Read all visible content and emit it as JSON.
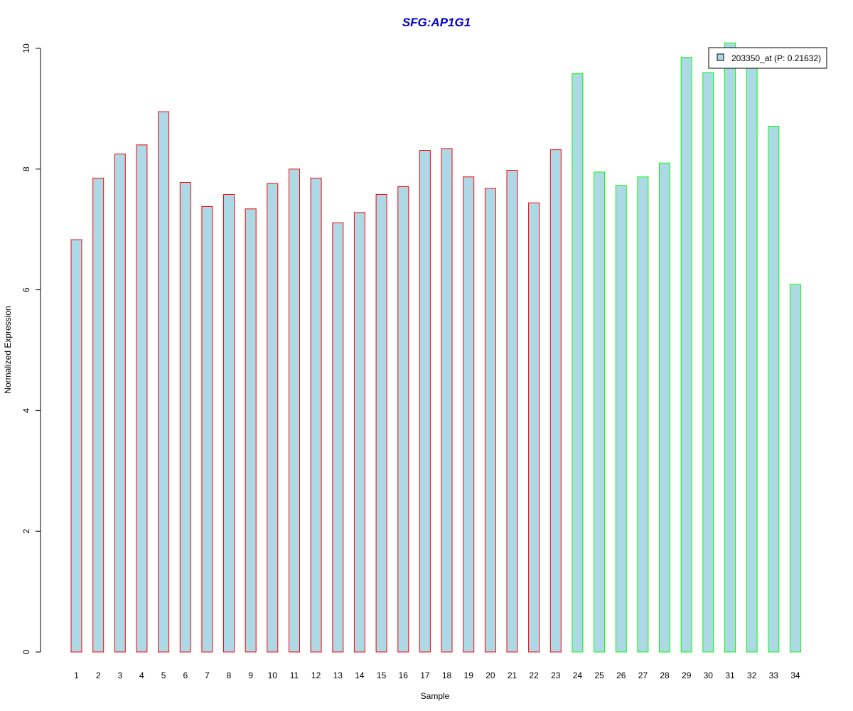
{
  "chart_data": {
    "type": "bar",
    "title": "SFG:AP1G1",
    "xlabel": "Sample",
    "ylabel": "Normalized Expression",
    "ylim": [
      0,
      10
    ],
    "yticks": [
      0,
      2,
      4,
      6,
      8,
      10
    ],
    "categories": [
      "1",
      "2",
      "3",
      "4",
      "5",
      "6",
      "7",
      "8",
      "9",
      "10",
      "11",
      "12",
      "13",
      "14",
      "15",
      "16",
      "17",
      "18",
      "19",
      "20",
      "21",
      "22",
      "23",
      "24",
      "25",
      "26",
      "27",
      "28",
      "29",
      "30",
      "31",
      "32",
      "33",
      "34"
    ],
    "series": [
      {
        "name": "203350_at (P: 0.21632)",
        "values": [
          6.83,
          7.85,
          8.25,
          8.4,
          8.95,
          7.78,
          7.38,
          7.58,
          7.34,
          7.76,
          8.0,
          7.85,
          7.11,
          7.28,
          7.58,
          7.71,
          8.31,
          8.34,
          7.87,
          7.68,
          7.98,
          7.44,
          8.32,
          9.58,
          7.95,
          7.73,
          7.87,
          8.1,
          9.85,
          9.6,
          10.09,
          9.75,
          8.71,
          6.09
        ]
      }
    ],
    "groups": [
      1,
      1,
      1,
      1,
      1,
      1,
      1,
      1,
      1,
      1,
      1,
      1,
      1,
      1,
      1,
      1,
      1,
      1,
      1,
      1,
      1,
      1,
      1,
      2,
      2,
      2,
      2,
      2,
      2,
      2,
      2,
      2,
      2,
      2
    ],
    "colors": {
      "fill": "#add8e6",
      "group1_border": "#ff0000",
      "group2_border": "#00ff00",
      "title": "#0000cc",
      "axis": "#000000"
    },
    "legend_position": "top-right",
    "grid": false
  }
}
